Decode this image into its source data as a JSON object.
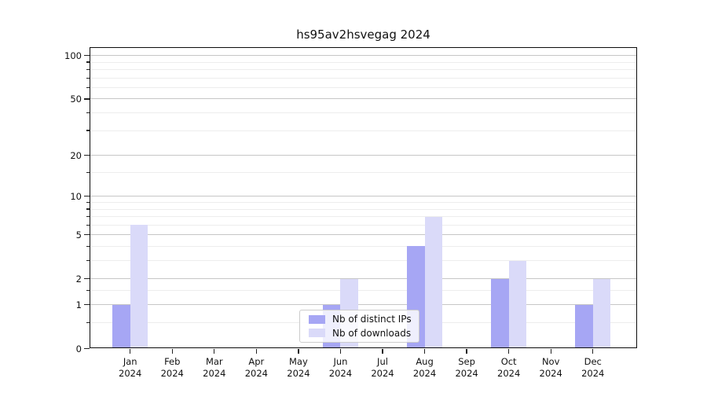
{
  "figure": {
    "title": "hs95av2hsvegag 2024"
  },
  "chart_data": {
    "type": "bar",
    "title": "hs95av2hsvegag 2024",
    "categories": [
      "Jan 2024",
      "Feb 2024",
      "Mar 2024",
      "Apr 2024",
      "May 2024",
      "Jun 2024",
      "Jul 2024",
      "Aug 2024",
      "Sep 2024",
      "Oct 2024",
      "Nov 2024",
      "Dec 2024"
    ],
    "series": [
      {
        "name": "Nb of distinct IPs",
        "color": "#a6a6f4",
        "values": [
          1,
          0,
          0,
          0,
          0,
          1,
          0,
          4,
          0,
          2,
          0,
          1
        ]
      },
      {
        "name": "Nb of downloads",
        "color": "#dadaf9",
        "values": [
          6,
          0,
          0,
          0,
          0,
          2,
          0,
          7,
          0,
          3,
          0,
          2
        ]
      }
    ],
    "xlabel": "",
    "ylabel": "",
    "yscale": "log1p",
    "ylim": [
      0,
      114
    ],
    "y_major_ticks": [
      0,
      1,
      2,
      5,
      10,
      20,
      50,
      100
    ],
    "y_minor_ticks": [
      0.5,
      1.5,
      3,
      4,
      6,
      7,
      8,
      9,
      15,
      30,
      40,
      60,
      70,
      80,
      90
    ],
    "grid": true,
    "legend": {
      "labels": [
        "Nb of distinct IPs",
        "Nb of downloads"
      ],
      "position": "lower center"
    }
  }
}
